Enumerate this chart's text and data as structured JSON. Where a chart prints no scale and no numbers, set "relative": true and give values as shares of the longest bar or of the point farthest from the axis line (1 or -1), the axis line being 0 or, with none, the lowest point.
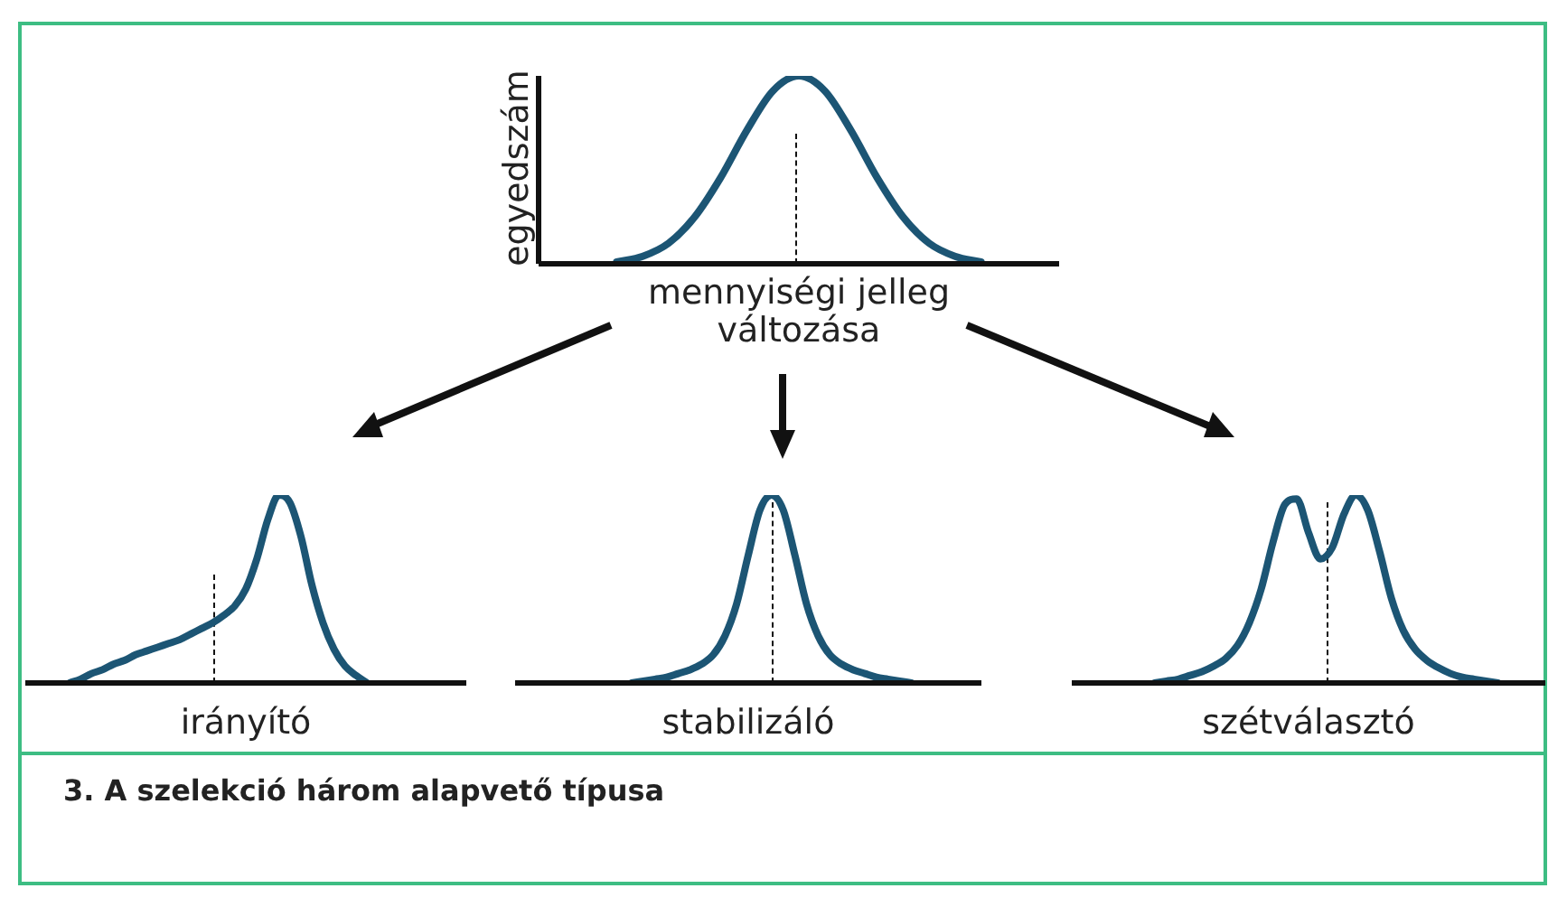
{
  "chart_data": [
    {
      "type": "line",
      "relative": true,
      "ylabel": "egyedszám",
      "xlabel": "mennyiségi jelleg változása",
      "categories": [
        null,
        null,
        null,
        null,
        null,
        null,
        null,
        null,
        null,
        null,
        null,
        null,
        null,
        null,
        null,
        null,
        null,
        null,
        null,
        null,
        null
      ],
      "tick_labels": false,
      "marker": "none",
      "series": [
        {
          "color": "#1c5574",
          "values": [
            null,
            null,
            null,
            0.01,
            0.04,
            0.11,
            0.25,
            0.46,
            0.71,
            0.92,
            1,
            0.92,
            0.71,
            0.46,
            0.25,
            0.11,
            0.04,
            0.01,
            null,
            null,
            null
          ]
        }
      ],
      "annotations": [
        "3. A szelekció három alapvető típusa"
      ]
    },
    {
      "type": "line",
      "relative": true,
      "xlabel": "irányító",
      "categories": [
        null,
        null,
        null,
        null,
        null,
        null,
        null,
        null,
        null,
        null,
        null,
        null,
        null,
        null,
        null,
        null,
        null,
        null,
        null,
        null,
        null,
        null,
        null,
        null,
        null,
        null,
        null,
        null,
        null,
        null,
        null,
        null,
        null,
        null,
        null,
        null,
        null,
        null,
        null,
        null,
        null
      ],
      "tick_labels": false,
      "marker": "none",
      "series": [
        {
          "color": "#1c5574",
          "values": [
            null,
            null,
            null,
            null,
            0,
            0.02,
            0.05,
            0.07,
            0.1,
            0.12,
            0.15,
            0.17,
            0.19,
            0.21,
            0.23,
            0.26,
            0.29,
            0.32,
            0.36,
            0.41,
            0.5,
            0.66,
            0.87,
            1,
            0.96,
            0.78,
            0.52,
            0.32,
            0.18,
            0.09,
            0.04,
            0,
            null,
            null,
            null,
            null,
            null,
            null,
            null,
            null,
            null
          ]
        }
      ]
    },
    {
      "type": "line",
      "relative": true,
      "xlabel": "stabilizáló",
      "categories": [
        null,
        null,
        null,
        null,
        null,
        null,
        null,
        null,
        null,
        null,
        null,
        null,
        null,
        null,
        null,
        null,
        null,
        null,
        null,
        null,
        null,
        null,
        null,
        null,
        null,
        null,
        null,
        null,
        null,
        null,
        null,
        null,
        null,
        null,
        null,
        null,
        null,
        null,
        null,
        null,
        null
      ],
      "tick_labels": false,
      "marker": "none",
      "series": [
        {
          "color": "#1c5574",
          "values": [
            null,
            null,
            null,
            null,
            null,
            null,
            null,
            null,
            null,
            null,
            0,
            0.01,
            0.02,
            0.03,
            0.05,
            0.07,
            0.1,
            0.15,
            0.25,
            0.42,
            0.68,
            0.92,
            1,
            0.92,
            0.68,
            0.42,
            0.25,
            0.15,
            0.1,
            0.07,
            0.05,
            0.03,
            0.02,
            0.01,
            0,
            null,
            null,
            null,
            null,
            null,
            null
          ]
        }
      ]
    },
    {
      "type": "line",
      "relative": true,
      "xlabel": "szétválasztó",
      "categories": [
        null,
        null,
        null,
        null,
        null,
        null,
        null,
        null,
        null,
        null,
        null,
        null,
        null,
        null,
        null,
        null,
        null,
        null,
        null,
        null,
        null,
        null,
        null,
        null,
        null,
        null,
        null,
        null,
        null,
        null,
        null,
        null,
        null,
        null,
        null,
        null,
        null,
        null,
        null,
        null,
        null
      ],
      "tick_labels": false,
      "marker": "none",
      "series": [
        {
          "color": "#1c5574",
          "values": [
            null,
            null,
            null,
            null,
            null,
            null,
            null,
            0,
            0.01,
            0.02,
            0.04,
            0.06,
            0.09,
            0.13,
            0.2,
            0.32,
            0.5,
            0.75,
            0.95,
            0.98,
            0.8,
            0.66,
            0.72,
            0.9,
            1,
            0.92,
            0.7,
            0.45,
            0.28,
            0.18,
            0.12,
            0.08,
            0.05,
            0.03,
            0.02,
            0.01,
            0,
            null,
            null,
            null,
            null
          ]
        }
      ]
    }
  ]
}
